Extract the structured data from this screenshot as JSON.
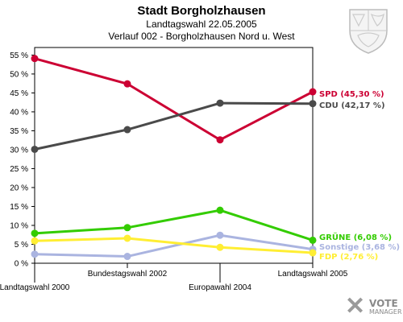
{
  "header": {
    "title": "Stadt Borgholzhausen",
    "subtitle": "Landtagswahl 22.05.2005",
    "subtitle2": "Verlauf 002 - Borgholzhausen Nord u. West"
  },
  "chart_data": {
    "type": "line",
    "categories": [
      "Landtagswahl 2000",
      "Bundestagswahl 2002",
      "Europawahl 2004",
      "Landtagswahl 2005"
    ],
    "ylim": [
      0,
      57
    ],
    "yticks": [
      0,
      5,
      10,
      15,
      20,
      25,
      30,
      35,
      40,
      45,
      50,
      55
    ],
    "ytick_labels": [
      "0 %",
      "5 %",
      "10 %",
      "15 %",
      "20 %",
      "25 %",
      "30 %",
      "35 %",
      "40 %",
      "45 %",
      "50 %",
      "55 %"
    ],
    "grid": false,
    "series": [
      {
        "name": "SPD",
        "label": "SPD (45,30 %)",
        "color": "#cc0033",
        "values": [
          54.1,
          47.4,
          32.6,
          45.3
        ]
      },
      {
        "name": "CDU",
        "label": "CDU (42,17 %)",
        "color": "#4a4a4a",
        "values": [
          30.1,
          35.3,
          42.3,
          42.17
        ]
      },
      {
        "name": "GRÜNE",
        "label": "GRÜNE (6,08 %)",
        "color": "#33cc00",
        "values": [
          7.9,
          9.4,
          14.0,
          6.08
        ]
      },
      {
        "name": "Sonstige",
        "label": "Sonstige (3,68 %)",
        "color": "#aab4e0",
        "values": [
          2.4,
          1.8,
          7.4,
          3.68
        ]
      },
      {
        "name": "FDP",
        "label": "FDP (2,76 %)",
        "color": "#ffee33",
        "values": [
          5.9,
          6.6,
          4.2,
          2.76
        ]
      }
    ]
  },
  "branding": {
    "logo_main": "VOTE",
    "logo_sub": "MANAGER",
    "crest_icon": "coat-of-arms-icon",
    "logo_icon": "vote-manager-x-icon"
  }
}
